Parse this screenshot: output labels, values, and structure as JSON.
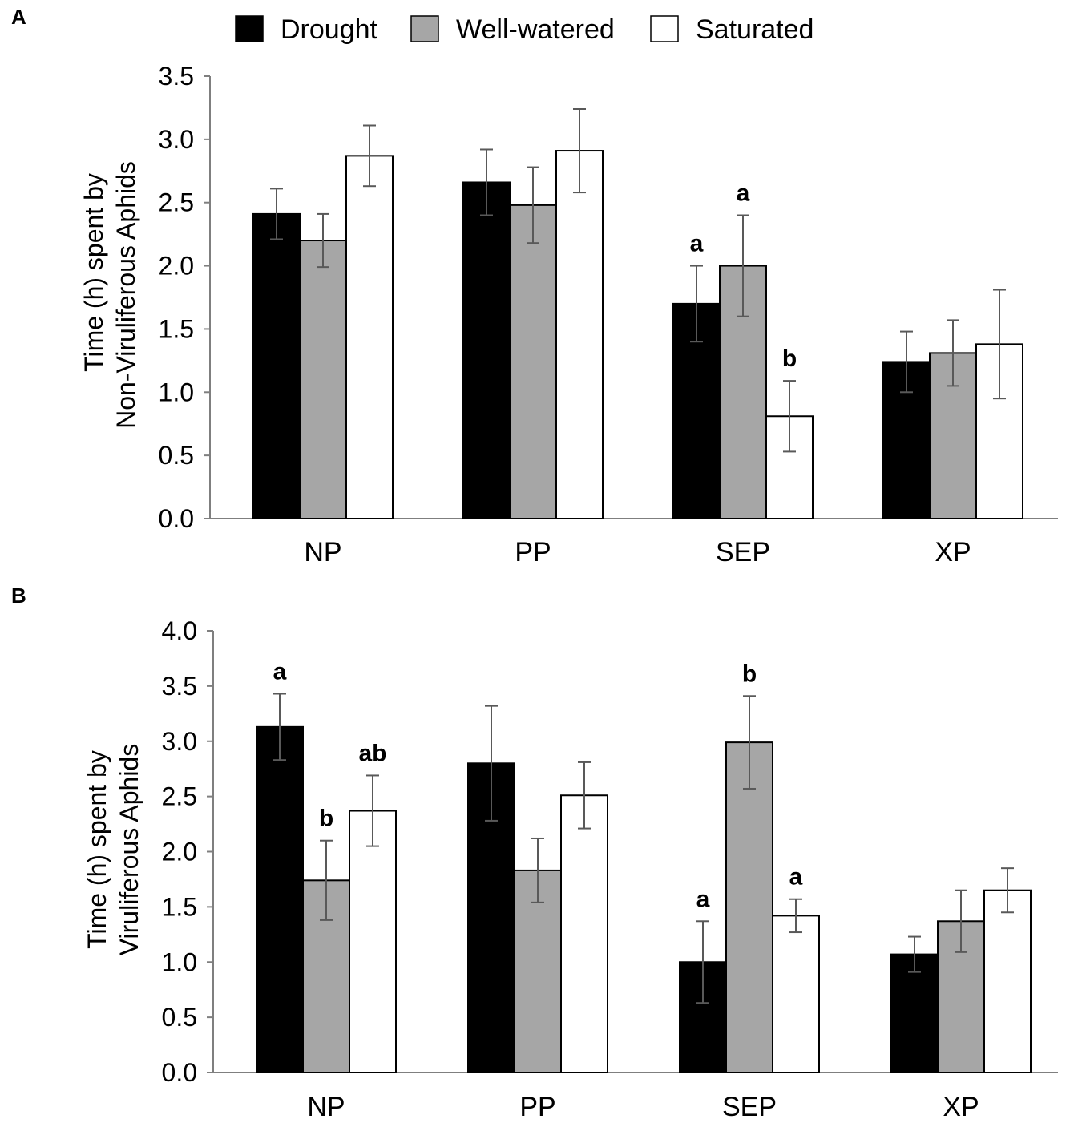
{
  "legend": [
    {
      "name": "Drought",
      "color": "#000000"
    },
    {
      "name": "Well-watered",
      "color": "#a6a6a6"
    },
    {
      "name": "Saturated",
      "color": "#ffffff"
    }
  ],
  "chart_data": [
    {
      "panel": "A",
      "type": "bar",
      "ylabel_line1": "Time (h) spent by",
      "ylabel_line2": "Non-Viruliferous  Aphids",
      "categories": [
        "NP",
        "PP",
        "SEP",
        "XP"
      ],
      "ylim": [
        0,
        3.5
      ],
      "ticks": [
        "0.0",
        "0.5",
        "1.0",
        "1.5",
        "2.0",
        "2.5",
        "3.0",
        "3.5"
      ],
      "series": [
        {
          "name": "Drought",
          "values": [
            2.41,
            2.66,
            1.7,
            1.24
          ],
          "errors": [
            0.2,
            0.26,
            0.3,
            0.24
          ]
        },
        {
          "name": "Well-watered",
          "values": [
            2.2,
            2.48,
            2.0,
            1.31
          ],
          "errors": [
            0.21,
            0.3,
            0.4,
            0.26
          ]
        },
        {
          "name": "Saturated",
          "values": [
            2.87,
            2.91,
            0.81,
            1.38
          ],
          "errors": [
            0.24,
            0.33,
            0.28,
            0.43
          ]
        }
      ],
      "annotations": [
        {
          "category": "SEP",
          "series": "Drought",
          "text": "a"
        },
        {
          "category": "SEP",
          "series": "Well-watered",
          "text": "a"
        },
        {
          "category": "SEP",
          "series": "Saturated",
          "text": "b"
        }
      ]
    },
    {
      "panel": "B",
      "type": "bar",
      "ylabel_line1": "Time (h) spent by",
      "ylabel_line2": "Viruliferous Aphids",
      "categories": [
        "NP",
        "PP",
        "SEP",
        "XP"
      ],
      "ylim": [
        0,
        4
      ],
      "ticks": [
        "0.0",
        "0.5",
        "1.0",
        "1.5",
        "2.0",
        "2.5",
        "3.0",
        "3.5",
        "4.0"
      ],
      "series": [
        {
          "name": "Drought",
          "values": [
            3.13,
            2.8,
            1.0,
            1.07
          ],
          "errors": [
            0.3,
            0.52,
            0.37,
            0.16
          ]
        },
        {
          "name": "Well-watered",
          "values": [
            1.74,
            1.83,
            2.99,
            1.37
          ],
          "errors": [
            0.36,
            0.29,
            0.42,
            0.28
          ]
        },
        {
          "name": "Saturated",
          "values": [
            2.37,
            2.51,
            1.42,
            1.65
          ],
          "errors": [
            0.32,
            0.3,
            0.15,
            0.2
          ]
        }
      ],
      "annotations": [
        {
          "category": "NP",
          "series": "Drought",
          "text": "a"
        },
        {
          "category": "NP",
          "series": "Well-watered",
          "text": "b"
        },
        {
          "category": "NP",
          "series": "Saturated",
          "text": "ab"
        },
        {
          "category": "SEP",
          "series": "Drought",
          "text": "a"
        },
        {
          "category": "SEP",
          "series": "Well-watered",
          "text": "b"
        },
        {
          "category": "SEP",
          "series": "Saturated",
          "text": "a"
        }
      ]
    }
  ]
}
